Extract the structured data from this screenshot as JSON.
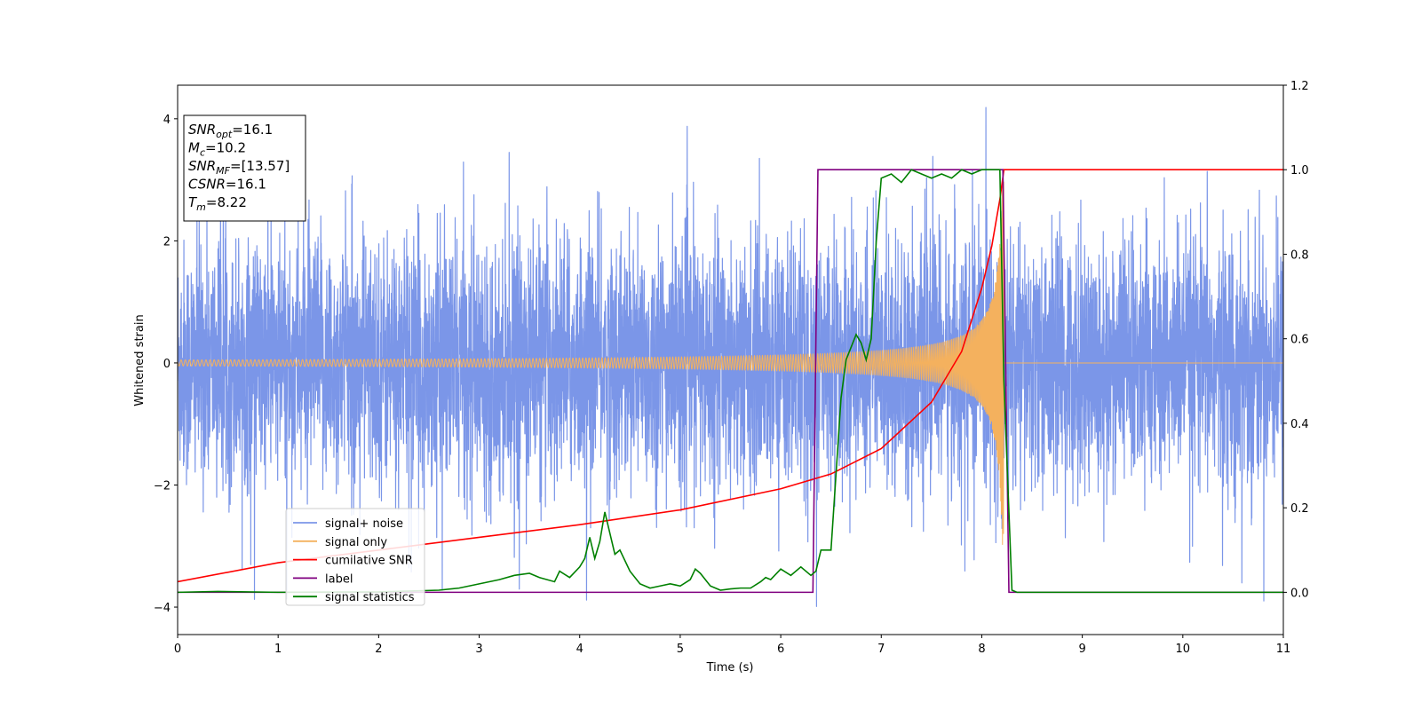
{
  "chart_data": {
    "type": "line",
    "xlabel": "Time (s)",
    "ylabel": "Whitened strain",
    "xlim": [
      0,
      11
    ],
    "ylim_left": [
      -4.45,
      4.55
    ],
    "ylim_right": [
      -0.1,
      1.2
    ],
    "x_ticks": [
      0,
      1,
      2,
      3,
      4,
      5,
      6,
      7,
      8,
      9,
      10,
      11
    ],
    "y_ticks_left": [
      -4,
      -2,
      0,
      2,
      4
    ],
    "y_ticks_right": [
      0.0,
      0.2,
      0.4,
      0.6,
      0.8,
      1.0,
      1.2
    ],
    "y_tick_labels_left": [
      "−4",
      "−2",
      "0",
      "2",
      "4"
    ],
    "y_tick_labels_right": [
      "0.0",
      "0.2",
      "0.4",
      "0.6",
      "0.8",
      "1.0",
      "1.2"
    ],
    "annotation": {
      "lines": [
        {
          "base": "SNR",
          "sub": "opt",
          "value": "=16.1"
        },
        {
          "base": "M",
          "sub": "c",
          "value": "=10.2"
        },
        {
          "base": "SNR",
          "sub": "MF",
          "value": "=[13.57]"
        },
        {
          "base": "CSNR",
          "sub": "",
          "value": "=16.1"
        },
        {
          "base": "T",
          "sub": "m",
          "value": "=8.22"
        }
      ]
    },
    "legend_position": "lower-left",
    "series": [
      {
        "name": "signal+ noise",
        "axis": "left",
        "color": "#7b96e8",
        "description": "whitened noise plus chirp, amplitude roughly between -3.9 and 4.1"
      },
      {
        "name": "signal only",
        "axis": "left",
        "color": "#f4b15e",
        "chirp": {
          "t_start": 0,
          "t_merge": 8.22,
          "amp_start": 0.05,
          "amp_peak": 3.0
        }
      },
      {
        "name": "cumilative SNR",
        "axis": "right",
        "color": "#ff0000",
        "x": [
          0,
          1,
          2,
          3,
          4,
          5,
          6,
          6.5,
          7,
          7.5,
          7.8,
          8.0,
          8.1,
          8.18,
          8.22,
          8.23,
          11
        ],
        "values": [
          0.025,
          0.07,
          0.1,
          0.13,
          0.16,
          0.195,
          0.245,
          0.28,
          0.34,
          0.45,
          0.57,
          0.72,
          0.82,
          0.93,
          1.0,
          1.0,
          1.0
        ]
      },
      {
        "name": "label",
        "axis": "right",
        "color": "#800080",
        "x": [
          0,
          6.32,
          6.37,
          8.21,
          8.27,
          11
        ],
        "values": [
          0,
          0,
          1,
          1,
          0,
          0
        ]
      },
      {
        "name": "signal statistics",
        "axis": "right",
        "color": "#008000",
        "x": [
          0,
          0.4,
          1,
          2,
          2.6,
          2.8,
          3.0,
          3.2,
          3.35,
          3.5,
          3.6,
          3.75,
          3.8,
          3.9,
          4.0,
          4.05,
          4.1,
          4.15,
          4.2,
          4.25,
          4.3,
          4.35,
          4.4,
          4.5,
          4.6,
          4.7,
          4.8,
          4.9,
          5.0,
          5.1,
          5.15,
          5.2,
          5.3,
          5.4,
          5.5,
          5.6,
          5.7,
          5.8,
          5.85,
          5.9,
          6.0,
          6.1,
          6.2,
          6.3,
          6.35,
          6.4,
          6.5,
          6.55,
          6.6,
          6.65,
          6.7,
          6.75,
          6.8,
          6.85,
          6.9,
          6.95,
          7.0,
          7.1,
          7.2,
          7.3,
          7.4,
          7.5,
          7.6,
          7.7,
          7.8,
          7.9,
          8.0,
          8.1,
          8.18,
          8.22,
          8.3,
          8.35,
          8.4,
          9,
          10,
          11
        ],
        "values": [
          0,
          0.002,
          0,
          0.001,
          0.005,
          0.01,
          0.02,
          0.03,
          0.04,
          0.045,
          0.035,
          0.025,
          0.05,
          0.035,
          0.06,
          0.08,
          0.13,
          0.08,
          0.12,
          0.19,
          0.14,
          0.09,
          0.1,
          0.05,
          0.02,
          0.01,
          0.015,
          0.02,
          0.015,
          0.03,
          0.055,
          0.045,
          0.015,
          0.005,
          0.008,
          0.01,
          0.01,
          0.025,
          0.035,
          0.03,
          0.055,
          0.04,
          0.06,
          0.04,
          0.05,
          0.1,
          0.1,
          0.28,
          0.46,
          0.55,
          0.58,
          0.61,
          0.59,
          0.55,
          0.6,
          0.83,
          0.98,
          0.99,
          0.97,
          1.0,
          0.99,
          0.98,
          0.99,
          0.98,
          1.0,
          0.99,
          1.0,
          1.0,
          1.0,
          0.5,
          0.005,
          0.0,
          0.0,
          0.0,
          0.0,
          0.0
        ]
      }
    ]
  }
}
